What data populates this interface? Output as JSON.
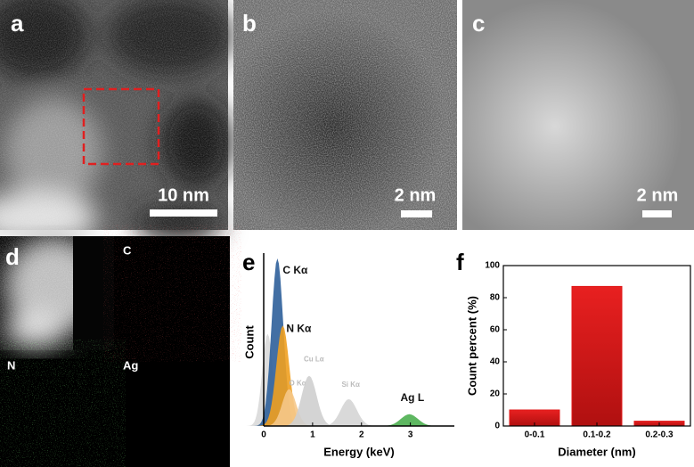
{
  "panels": {
    "a": {
      "label": "a",
      "scale_bar": "10 nm"
    },
    "b": {
      "label": "b",
      "scale_bar": "2 nm"
    },
    "c": {
      "label": "c",
      "scale_bar": "2 nm"
    },
    "d": {
      "label": "d",
      "maps": [
        "C",
        "N",
        "Ag"
      ]
    }
  },
  "chart_data": [
    {
      "type": "spectrum",
      "label": "e",
      "xlabel": "Energy (keV)",
      "ylabel": "Count",
      "xlim": [
        0,
        3.9
      ],
      "xticks": [
        0,
        1,
        2,
        3
      ],
      "ylim": [
        0,
        100
      ],
      "series": [
        {
          "name": null,
          "color": "#d9d9d9",
          "center": 0.08,
          "height": 55
        },
        {
          "name": "C Kα",
          "color": "#2d5f9a",
          "center": 0.28,
          "height": 100
        },
        {
          "name": "N Kα",
          "color": "#f0a020",
          "center": 0.39,
          "height": 60
        },
        {
          "name": "O Kα",
          "color": "#f5c88a",
          "center": 0.52,
          "height": 22
        },
        {
          "name": "Cu Lα",
          "color": "#cfcfcf",
          "center": 0.93,
          "height": 30
        },
        {
          "name": "Si Kα",
          "color": "#d5d5d5",
          "center": 1.74,
          "height": 16
        },
        {
          "name": "Ag L",
          "color": "#4caf50",
          "center": 2.98,
          "height": 7
        }
      ]
    },
    {
      "type": "bar",
      "label": "f",
      "xlabel": "Diameter (nm)",
      "ylabel": "Count percent (%)",
      "categories": [
        "0-0.1",
        "0.1-0.2",
        "0.2-0.3"
      ],
      "values": [
        10,
        87,
        3
      ],
      "color": "#e01818",
      "ylim": [
        0,
        100
      ],
      "yticks": [
        0,
        20,
        40,
        60,
        80,
        100
      ]
    }
  ]
}
